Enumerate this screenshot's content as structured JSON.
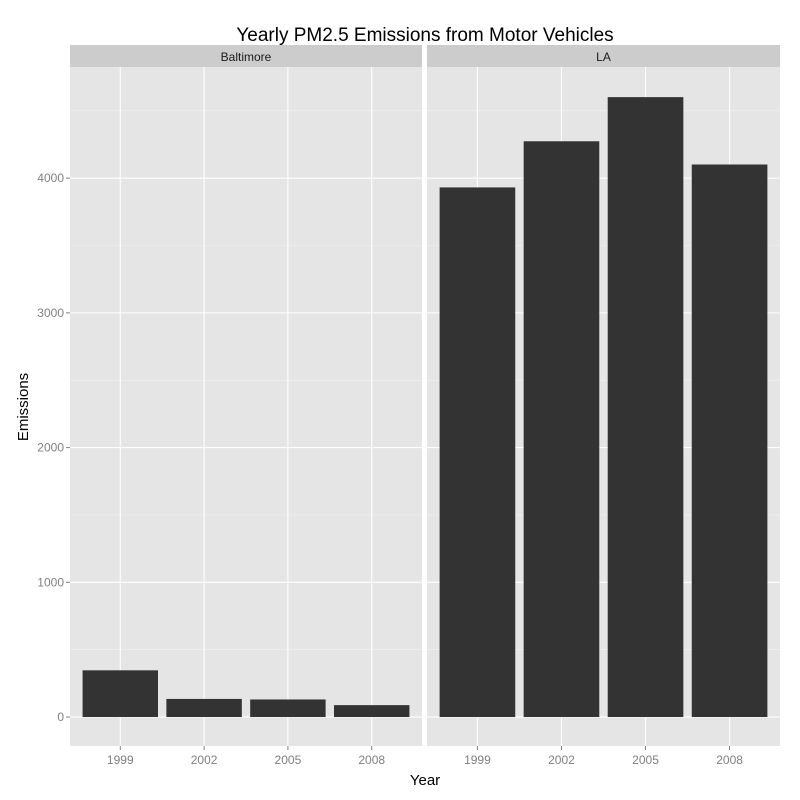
{
  "chart_data": {
    "type": "bar",
    "title": "Yearly PM2.5 Emissions from Motor Vehicles",
    "xlabel": "Year",
    "ylabel": "Emissions",
    "categories": [
      "1999",
      "2002",
      "2005",
      "2008"
    ],
    "yticks": [
      0,
      1000,
      2000,
      3000,
      4000
    ],
    "ylim": [
      -215,
      4825
    ],
    "grid": true,
    "legend": "none",
    "colors": {
      "bar": "#333333",
      "panel": "#e5e5e5",
      "strip": "#cccccc",
      "grid_major": "#ffffff",
      "grid_minor": "#f2f2f2"
    },
    "panels": [
      {
        "name": "Baltimore",
        "values": [
          346.8,
          134.3,
          130.4,
          88.3
        ]
      },
      {
        "name": "LA",
        "values": [
          3931.1,
          4273.7,
          4601.4,
          4101.3
        ]
      }
    ]
  }
}
